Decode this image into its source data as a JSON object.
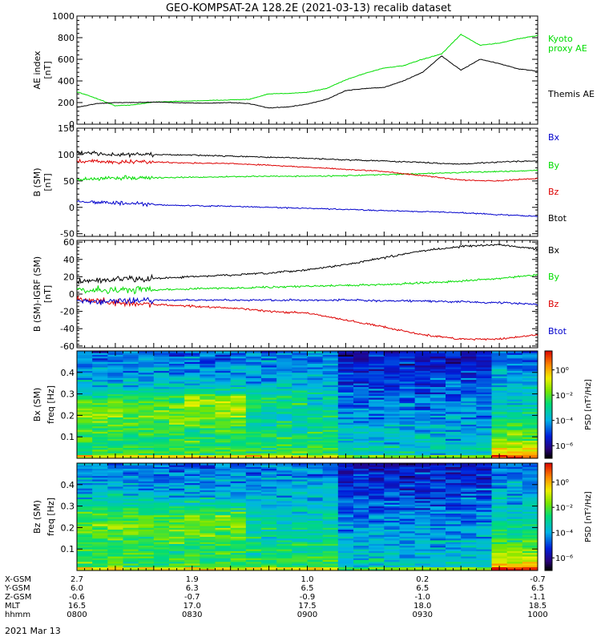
{
  "title": "GEO-KOMPSAT-2A 128.2E (2021-03-13) recalib dataset",
  "chart_data": [
    {
      "type": "line",
      "panel": "ae",
      "ylabel": [
        "AE index",
        "[nT]"
      ],
      "ylim": [
        0,
        1000
      ],
      "yticks": [
        0,
        200,
        400,
        600,
        800,
        1000
      ],
      "x": [
        0,
        5,
        10,
        15,
        20,
        25,
        30,
        35,
        40,
        45,
        50,
        55,
        60,
        65,
        70,
        75,
        80,
        85,
        90,
        95,
        100,
        105,
        110,
        115,
        120
      ],
      "series": [
        {
          "name": "Kyoto proxy AE",
          "label_lines": [
            "Kyoto",
            "proxy AE"
          ],
          "color": "#00dd00",
          "values": [
            300,
            240,
            170,
            180,
            205,
            210,
            215,
            220,
            225,
            230,
            280,
            285,
            295,
            330,
            410,
            470,
            520,
            540,
            600,
            650,
            830,
            730,
            750,
            790,
            820
          ]
        },
        {
          "name": "Themis AE",
          "label_lines": [
            "Themis AE"
          ],
          "color": "#000000",
          "values": [
            155,
            190,
            200,
            200,
            205,
            200,
            195,
            195,
            200,
            190,
            150,
            160,
            185,
            230,
            310,
            330,
            340,
            400,
            480,
            630,
            500,
            600,
            560,
            510,
            490
          ]
        }
      ]
    },
    {
      "type": "line",
      "panel": "b_sm",
      "ylabel": [
        "B (SM)",
        "[nT]"
      ],
      "ylim": [
        -55,
        150
      ],
      "yticks": [
        -50,
        0,
        50,
        100,
        150
      ],
      "x": [
        0,
        10,
        20,
        30,
        40,
        50,
        60,
        70,
        80,
        90,
        100,
        110,
        120
      ],
      "series": [
        {
          "name": "Bx",
          "color": "#0000cc",
          "values": [
            12,
            8,
            5,
            3,
            2,
            0,
            -2,
            -4,
            -6,
            -8,
            -10,
            -14,
            -17
          ]
        },
        {
          "name": "By",
          "color": "#00dd00",
          "values": [
            52,
            56,
            56,
            57,
            58,
            59,
            59,
            60,
            62,
            64,
            66,
            68,
            70
          ]
        },
        {
          "name": "Bz",
          "color": "#dd0000",
          "values": [
            88,
            86,
            86,
            84,
            83,
            80,
            76,
            72,
            68,
            60,
            52,
            50,
            55
          ]
        },
        {
          "name": "Btot",
          "color": "#000000",
          "values": [
            104,
            100,
            100,
            99,
            97,
            95,
            93,
            90,
            88,
            85,
            82,
            86,
            88
          ]
        }
      ]
    },
    {
      "type": "line",
      "panel": "b_igrf",
      "ylabel": [
        "B (SM)-IGRF (SM)",
        "[nT]"
      ],
      "ylim": [
        -62,
        62
      ],
      "yticks": [
        -60,
        -40,
        -20,
        0,
        20,
        40,
        60
      ],
      "x": [
        0,
        10,
        20,
        30,
        40,
        50,
        60,
        70,
        80,
        90,
        100,
        110,
        120
      ],
      "series": [
        {
          "name": "Bx",
          "color": "#000000",
          "values": [
            14,
            17,
            18,
            20,
            22,
            24,
            28,
            34,
            42,
            50,
            55,
            57,
            52
          ]
        },
        {
          "name": "By",
          "color": "#00dd00",
          "values": [
            4,
            5,
            5,
            6,
            7,
            8,
            9,
            10,
            11,
            13,
            15,
            18,
            22
          ]
        },
        {
          "name": "Bz",
          "color": "#dd0000",
          "values": [
            -6,
            -10,
            -12,
            -14,
            -16,
            -20,
            -22,
            -30,
            -38,
            -47,
            -52,
            -52,
            -47
          ]
        },
        {
          "name": "Btot",
          "color": "#0000cc",
          "values": [
            -8,
            -8,
            -7,
            -7,
            -7,
            -7,
            -7,
            -7,
            -8,
            -8,
            -9,
            -10,
            -12
          ]
        }
      ]
    },
    {
      "type": "heatmap",
      "panel": "bx_psd",
      "ylabel": [
        "Bx (SM)",
        "freq [Hz]"
      ],
      "ylim": [
        0,
        0.5
      ],
      "yticks": [
        0.1,
        0.2,
        0.3,
        0.4
      ],
      "colorbar_label": "PSD [nT²/Hz]",
      "colorbar_ticks": [
        "10⁰",
        "10⁻²",
        "10⁻⁴",
        "10⁻⁶"
      ],
      "colorbar_tick_values": [
        0,
        -2,
        -4,
        -6
      ],
      "clim_log10": [
        -7,
        1.5
      ]
    },
    {
      "type": "heatmap",
      "panel": "bz_psd",
      "ylabel": [
        "Bz (SM)",
        "freq [Hz]"
      ],
      "ylim": [
        0,
        0.5
      ],
      "yticks": [
        0.1,
        0.2,
        0.3,
        0.4
      ],
      "colorbar_label": "PSD [nT²/Hz]",
      "colorbar_ticks": [
        "10⁰",
        "10⁻²",
        "10⁻⁴",
        "10⁻⁶"
      ],
      "colorbar_tick_values": [
        0,
        -2,
        -4,
        -6
      ],
      "clim_log10": [
        -7,
        1.5
      ]
    }
  ],
  "ephemeris": {
    "row_labels": [
      "X-GSM",
      "Y-GSM",
      "Z-GSM",
      "MLT",
      "hhmm"
    ],
    "columns": [
      {
        "x": 0,
        "values": [
          "2.7",
          "6.0",
          "-0.6",
          "16.5",
          "0800"
        ]
      },
      {
        "x": 30,
        "values": [
          "1.9",
          "6.3",
          "-0.7",
          "17.0",
          "0830"
        ]
      },
      {
        "x": 60,
        "values": [
          "1.0",
          "6.5",
          "-0.9",
          "17.5",
          "0900"
        ]
      },
      {
        "x": 90,
        "values": [
          "0.2",
          "6.5",
          "-1.0",
          "18.0",
          "0930"
        ]
      },
      {
        "x": 120,
        "values": [
          "-0.7",
          "6.5",
          "-1.1",
          "18.5",
          "1000"
        ]
      }
    ],
    "date": "2021 Mar 13"
  }
}
